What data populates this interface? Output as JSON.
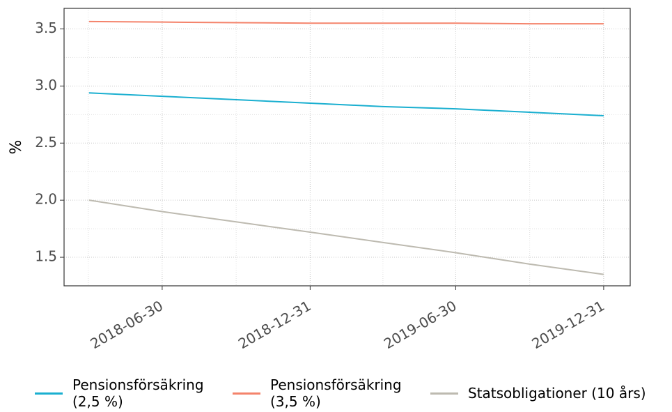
{
  "chart_data": {
    "type": "line",
    "ylabel": "%",
    "x": [
      "2018-03-31",
      "2018-06-30",
      "2018-09-30",
      "2018-12-31",
      "2019-03-31",
      "2019-06-30",
      "2019-09-30",
      "2019-12-31"
    ],
    "series": [
      {
        "name": "Pensionsförsäkring (2,5 %)",
        "color": "#1aafd0",
        "values": [
          2.94,
          2.91,
          2.88,
          2.85,
          2.82,
          2.8,
          2.77,
          2.74
        ]
      },
      {
        "name": "Pensionsförsäkring (3,5 %)",
        "color": "#f4836b",
        "values": [
          3.565,
          3.56,
          3.555,
          3.55,
          3.55,
          3.55,
          3.545,
          3.545
        ]
      },
      {
        "name": "Statsobligationer (10 års)",
        "color": "#bdbab0",
        "values": [
          2.0,
          1.9,
          1.81,
          1.72,
          1.63,
          1.54,
          1.44,
          1.35
        ]
      }
    ],
    "xlim": [
      "2018-02-28",
      "2020-02-02"
    ],
    "xticks": [
      "2018-06-30",
      "2018-12-31",
      "2019-06-30",
      "2019-12-31"
    ],
    "ylim": [
      1.25,
      3.68
    ],
    "yticks": [
      1.5,
      {
        "value": 2,
        "label": "2.0"
      },
      2.5,
      {
        "value": 3,
        "label": "3.0"
      },
      3.5
    ],
    "grid": true,
    "legend": "bottom"
  }
}
